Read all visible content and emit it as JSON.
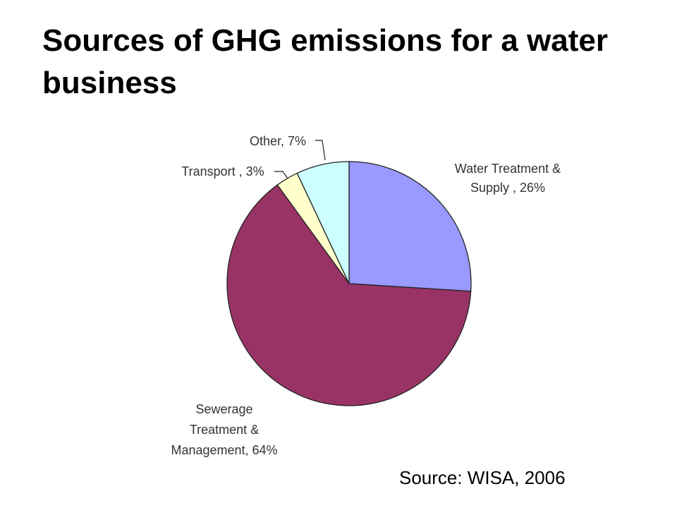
{
  "slide": {
    "title": "Sources of GHG emissions for a water business",
    "source": "Source: WISA, 2006"
  },
  "chart_data": {
    "type": "pie",
    "start_angle_deg": 0,
    "direction": "clockwise",
    "slices": [
      {
        "key": "water",
        "label_lines": [
          "Water Treatment &",
          "Supply , 26%"
        ],
        "value": 26,
        "color": "#9999ff"
      },
      {
        "key": "sewerage",
        "label_lines": [
          "Sewerage",
          "Treatment &",
          "Management, 64%"
        ],
        "value": 64,
        "color": "#993366"
      },
      {
        "key": "transport",
        "label_lines": [
          "Transport , 3%"
        ],
        "value": 3,
        "color": "#ffffcc"
      },
      {
        "key": "other",
        "label_lines": [
          "Other, 7%"
        ],
        "value": 7,
        "color": "#ccffff"
      }
    ],
    "legend": "none"
  }
}
